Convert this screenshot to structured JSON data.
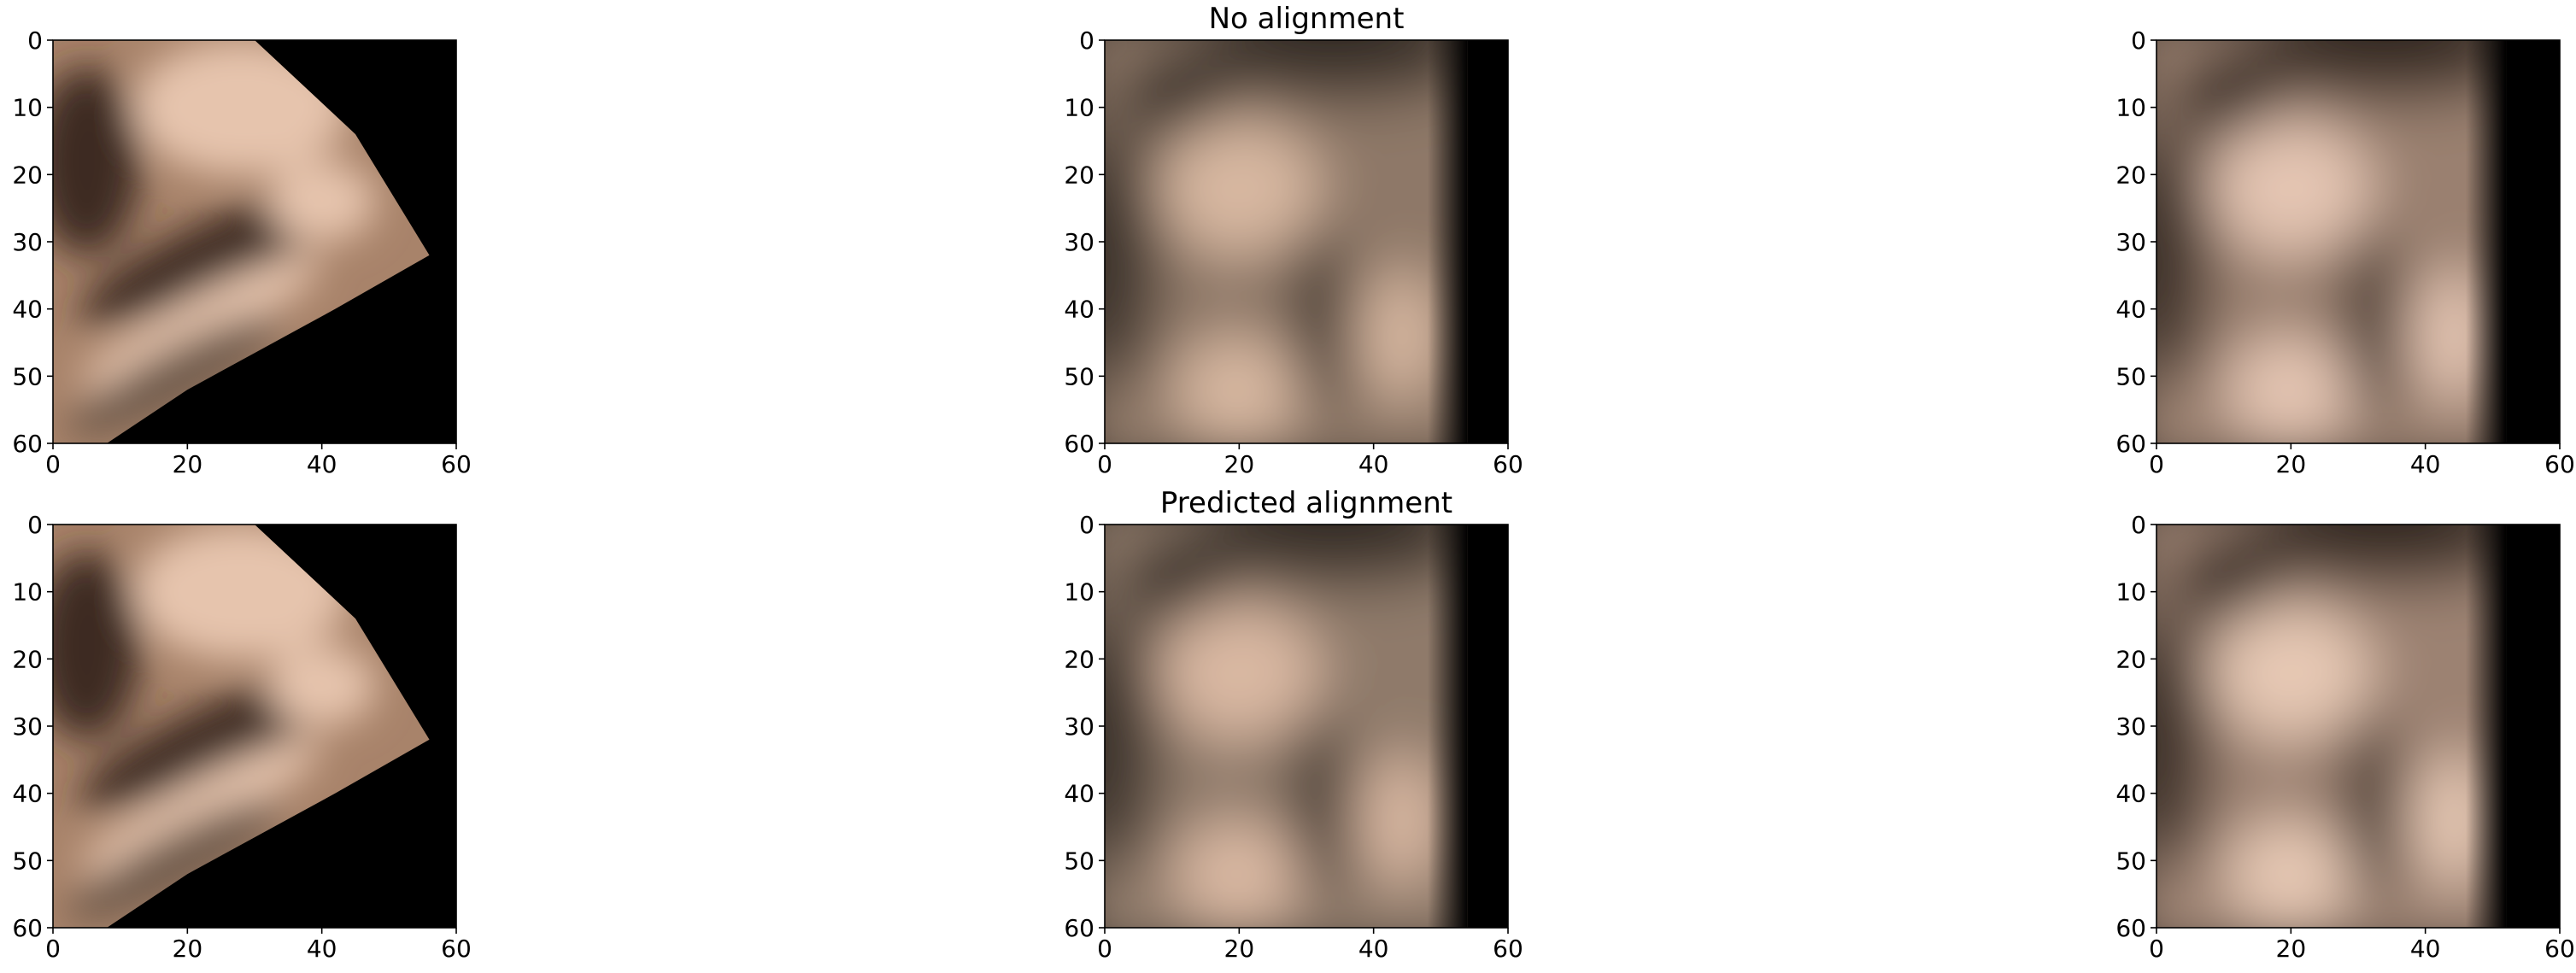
{
  "chart_data": [
    {
      "type": "heatmap",
      "title": "",
      "xlabel": "",
      "ylabel": "",
      "xlim": [
        0,
        60
      ],
      "ylim": [
        60,
        0
      ],
      "xticks": [
        "0",
        "20",
        "40",
        "60"
      ],
      "yticks": [
        "0",
        "10",
        "20",
        "30",
        "40",
        "50",
        "60"
      ],
      "content": "blurred face crop rotated, black corner on right",
      "palette": {
        "bg": "#000000",
        "light": "#e6c4ad",
        "mid": "#a8836a",
        "dark": "#3c2c24"
      }
    },
    {
      "type": "heatmap",
      "title": "No alignment",
      "xlabel": "",
      "ylabel": "",
      "xlim": [
        0,
        60
      ],
      "ylim": [
        60,
        0
      ],
      "xticks": [
        "0",
        "20",
        "40",
        "60"
      ],
      "yticks": [
        "0",
        "10",
        "20",
        "30",
        "40",
        "50",
        "60"
      ],
      "palette": {
        "bg": "#000000",
        "light": "#d7b7a0",
        "mid": "#8e7868",
        "dark": "#3b3029"
      }
    },
    {
      "type": "heatmap",
      "title": "",
      "xlabel": "",
      "ylabel": "",
      "xlim": [
        0,
        60
      ],
      "ylim": [
        60,
        0
      ],
      "xticks": [
        "0",
        "20",
        "40",
        "60"
      ],
      "yticks": [
        "0",
        "10",
        "20",
        "30",
        "40",
        "50",
        "60"
      ],
      "palette": {
        "bg": "#000000",
        "light": "#e4c5b2",
        "mid": "#9a8070",
        "dark": "#3a2e28"
      }
    },
    {
      "type": "heatmap",
      "title": "",
      "xlabel": "",
      "ylabel": "",
      "xlim": [
        0,
        60
      ],
      "ylim": [
        60,
        0
      ],
      "xticks": [
        "0",
        "20",
        "40",
        "60"
      ],
      "yticks": [
        "0",
        "10",
        "20",
        "30",
        "40",
        "50",
        "60"
      ],
      "palette": {
        "bg": "#000000",
        "light": "#e6c4ad",
        "mid": "#a8836a",
        "dark": "#3c2c24"
      }
    },
    {
      "type": "heatmap",
      "title": "Predicted alignment",
      "xlabel": "",
      "ylabel": "",
      "xlim": [
        0,
        60
      ],
      "ylim": [
        60,
        0
      ],
      "xticks": [
        "0",
        "20",
        "40",
        "60"
      ],
      "yticks": [
        "0",
        "10",
        "20",
        "30",
        "40",
        "50",
        "60"
      ],
      "palette": {
        "bg": "#000000",
        "light": "#d9b8a2",
        "mid": "#8f7a6a",
        "dark": "#3b3029"
      }
    },
    {
      "type": "heatmap",
      "title": "",
      "xlabel": "",
      "ylabel": "",
      "xlim": [
        0,
        60
      ],
      "ylim": [
        60,
        0
      ],
      "xticks": [
        "0",
        "20",
        "40",
        "60"
      ],
      "yticks": [
        "0",
        "10",
        "20",
        "30",
        "40",
        "50",
        "60"
      ],
      "palette": {
        "bg": "#000000",
        "light": "#e6c8b4",
        "mid": "#9c8272",
        "dark": "#3a2e28"
      }
    }
  ]
}
